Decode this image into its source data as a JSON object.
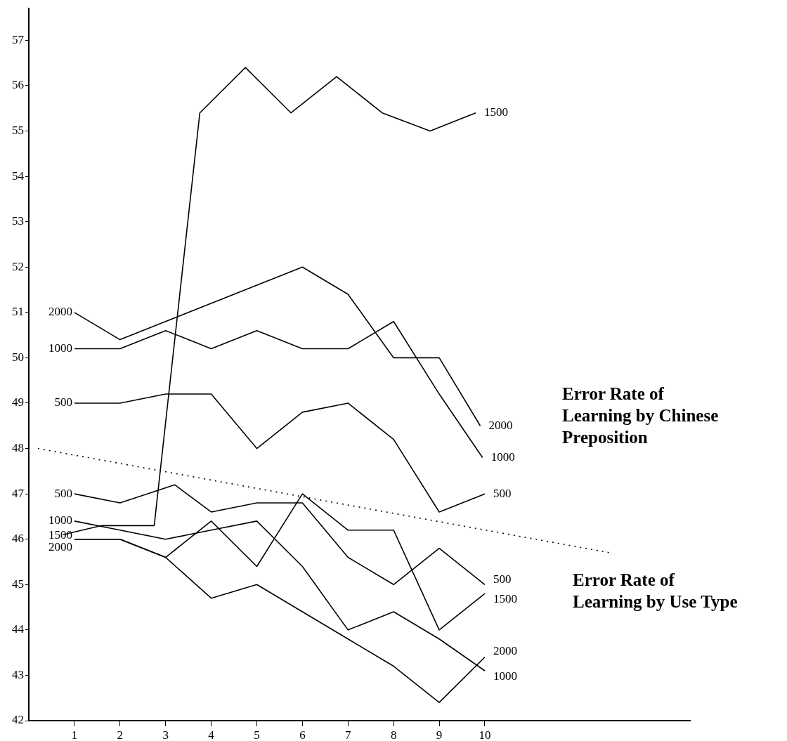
{
  "chart_data": {
    "type": "line",
    "xlim": [
      0,
      14.5
    ],
    "xticks": [
      1,
      2,
      3,
      4,
      5,
      6,
      7,
      8,
      9,
      10
    ],
    "ylim": [
      42,
      57.7
    ],
    "yticks": [
      42,
      43,
      44,
      45,
      46,
      47,
      48,
      49,
      50,
      51,
      52,
      53,
      54,
      55,
      56,
      57
    ],
    "grid": false,
    "legend": false,
    "marker": "none",
    "line_style": "solid",
    "annotations": [
      "Error Rate of Learning by Chinese Preposition",
      "Error Rate of Learning by Use Type"
    ],
    "series": [
      {
        "name": "1500",
        "color": "#000000",
        "x": [
          0.75,
          1.6,
          2.75,
          3.75,
          4.75,
          5.75,
          6.75,
          7.75,
          8.8,
          9.8
        ],
        "values": [
          46.1,
          46.3,
          46.3,
          55.4,
          56.4,
          55.4,
          56.2,
          55.4,
          55.0,
          55.4
        ]
      },
      {
        "name": "2000",
        "color": "#000000",
        "x": [
          1,
          2,
          6,
          7,
          8,
          9,
          9.9
        ],
        "values": [
          51.0,
          50.4,
          52.0,
          51.4,
          50.0,
          50.0,
          48.5
        ]
      },
      {
        "name": "1000",
        "color": "#000000",
        "x": [
          1,
          2,
          3,
          4,
          5,
          6,
          7,
          8,
          9,
          9.95
        ],
        "values": [
          50.2,
          50.2,
          50.6,
          50.2,
          50.6,
          50.2,
          50.2,
          50.8,
          49.2,
          47.8
        ]
      },
      {
        "name": "500",
        "color": "#000000",
        "x": [
          1,
          2,
          3,
          4,
          5,
          6,
          7,
          8,
          9,
          10
        ],
        "values": [
          49.0,
          49.0,
          49.2,
          49.2,
          48.0,
          48.8,
          49.0,
          48.2,
          46.6,
          47.0
        ]
      },
      {
        "name": "500",
        "color": "#000000",
        "x": [
          1,
          2,
          3.2,
          4,
          5,
          6,
          7,
          8,
          9,
          10
        ],
        "values": [
          47.0,
          46.8,
          47.2,
          46.6,
          46.8,
          46.8,
          45.6,
          45.0,
          45.8,
          45.0
        ]
      },
      {
        "name": "1000",
        "color": "#000000",
        "x": [
          1,
          2,
          3,
          4,
          5,
          6,
          7,
          8,
          9,
          10
        ],
        "values": [
          46.4,
          46.2,
          46.0,
          46.2,
          46.4,
          45.4,
          44.0,
          44.4,
          43.8,
          43.1
        ]
      },
      {
        "name": "1500",
        "color": "#000000",
        "x": [
          1,
          2,
          3,
          4,
          5,
          6,
          7,
          8,
          9,
          10
        ],
        "values": [
          46.0,
          46.0,
          45.6,
          46.4,
          45.4,
          47.0,
          46.2,
          46.2,
          44.0,
          44.8
        ]
      },
      {
        "name": "2000",
        "color": "#000000",
        "x": [
          1,
          2,
          3,
          4,
          5,
          6,
          7,
          8,
          9,
          10
        ],
        "values": [
          46.0,
          46.0,
          45.6,
          44.7,
          45.0,
          44.4,
          43.8,
          43.2,
          42.4,
          43.4
        ]
      },
      {
        "color": "#000000",
        "type": "line",
        "line_style": "dotted",
        "x": [
          0.2,
          12.75
        ],
        "values": [
          48.0,
          45.7
        ]
      }
    ]
  }
}
